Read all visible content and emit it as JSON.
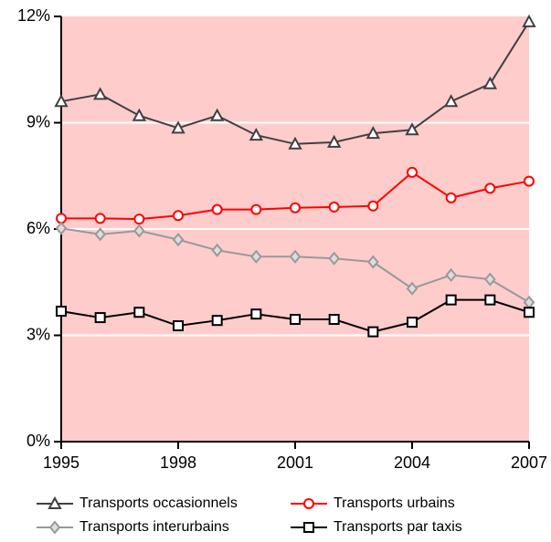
{
  "chart_data": {
    "type": "line",
    "x": [
      1995,
      1996,
      1997,
      1998,
      1999,
      2000,
      2001,
      2002,
      2003,
      2004,
      2005,
      2006,
      2007
    ],
    "xlim": [
      1995,
      2007
    ],
    "xticks": [
      1995,
      1998,
      2001,
      2004,
      2007
    ],
    "ylim": [
      0,
      12
    ],
    "yticks": [
      {
        "value": 0,
        "label": "0%"
      },
      {
        "value": 3,
        "label": "3%"
      },
      {
        "value": 6,
        "label": "6%"
      },
      {
        "value": 9,
        "label": "9%"
      },
      {
        "value": 12,
        "label": "12%"
      }
    ],
    "grid": true,
    "background": "#ffcccc",
    "legend": "bottom",
    "series": [
      {
        "name": "Transports occasionnels",
        "color": "#404040",
        "marker": "triangle",
        "values": [
          9.6,
          9.8,
          9.2,
          8.85,
          9.2,
          8.65,
          8.4,
          8.45,
          8.7,
          8.8,
          9.6,
          10.1,
          11.85
        ]
      },
      {
        "name": "Transports urbains",
        "color": "#ff0000",
        "marker": "circle",
        "values": [
          6.3,
          6.3,
          6.28,
          6.38,
          6.55,
          6.55,
          6.6,
          6.62,
          6.65,
          7.6,
          6.88,
          7.15,
          7.35
        ]
      },
      {
        "name": "Transports interurbains",
        "color": "#999999",
        "marker": "diamond",
        "values": [
          6.02,
          5.85,
          5.95,
          5.7,
          5.4,
          5.22,
          5.22,
          5.17,
          5.07,
          4.32,
          4.7,
          4.58,
          3.93
        ]
      },
      {
        "name": "Transports par taxis",
        "color": "#000000",
        "marker": "square",
        "values": [
          3.68,
          3.5,
          3.65,
          3.27,
          3.42,
          3.6,
          3.45,
          3.45,
          3.1,
          3.37,
          4.0,
          4.0,
          3.65
        ]
      }
    ]
  }
}
